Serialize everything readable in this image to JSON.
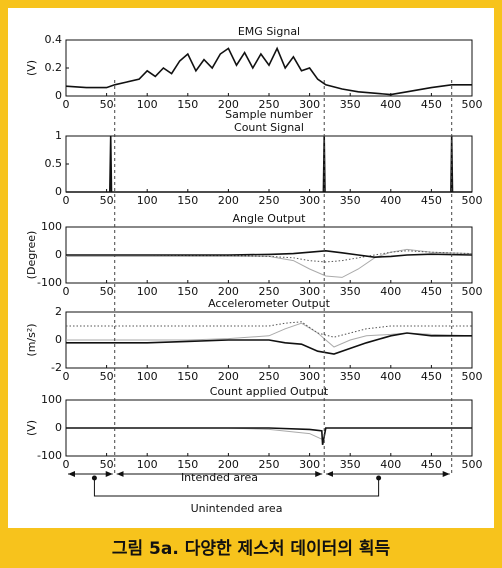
{
  "chart_data": [
    {
      "type": "line",
      "title": "EMG Signal",
      "ylabel": "(V)",
      "xlabel": "Sample number",
      "x": [
        0,
        25,
        50,
        60,
        75,
        90,
        100,
        110,
        120,
        130,
        140,
        150,
        160,
        170,
        180,
        190,
        200,
        210,
        220,
        230,
        240,
        250,
        260,
        270,
        280,
        290,
        300,
        310,
        320,
        340,
        360,
        380,
        400,
        420,
        450,
        475,
        500
      ],
      "series": [
        {
          "color": "#111",
          "style": "solid",
          "values": [
            0.07,
            0.06,
            0.06,
            0.08,
            0.1,
            0.12,
            0.18,
            0.14,
            0.2,
            0.16,
            0.25,
            0.3,
            0.18,
            0.26,
            0.2,
            0.3,
            0.34,
            0.22,
            0.31,
            0.2,
            0.3,
            0.22,
            0.34,
            0.2,
            0.28,
            0.18,
            0.2,
            0.12,
            0.08,
            0.05,
            0.03,
            0.02,
            0.01,
            0.03,
            0.06,
            0.08,
            0.08
          ]
        }
      ],
      "xlim": [
        0,
        500
      ],
      "xticks": [
        0,
        50,
        100,
        150,
        200,
        250,
        300,
        350,
        400,
        450,
        500
      ],
      "ylim": [
        0,
        0.4
      ],
      "yticks": [
        0,
        0.2,
        0.4
      ]
    },
    {
      "type": "line",
      "title": "Count Signal",
      "x": [
        0,
        54,
        55,
        56,
        317,
        318,
        319,
        474,
        475,
        476,
        500
      ],
      "series": [
        {
          "color": "#111",
          "style": "solid",
          "values": [
            0,
            0,
            1,
            0,
            0,
            1,
            0,
            0,
            1,
            0,
            0
          ]
        }
      ],
      "xlim": [
        0,
        500
      ],
      "xticks": [
        0,
        50,
        100,
        150,
        200,
        250,
        300,
        350,
        400,
        450,
        500
      ],
      "ylim": [
        0,
        1
      ],
      "yticks": [
        0,
        0.5,
        1
      ]
    },
    {
      "type": "line",
      "title": "Angle Output",
      "ylabel": "(Degree)",
      "x": [
        0,
        50,
        100,
        150,
        200,
        250,
        280,
        300,
        320,
        340,
        360,
        380,
        400,
        420,
        450,
        500
      ],
      "series": [
        {
          "color": "#aaa",
          "style": "solid",
          "values": [
            -5,
            -5,
            -5,
            -5,
            -5,
            -5,
            -20,
            -50,
            -75,
            -80,
            -50,
            -10,
            10,
            20,
            10,
            5
          ]
        },
        {
          "color": "#555",
          "style": "dotted",
          "values": [
            0,
            0,
            0,
            -2,
            -2,
            -5,
            -10,
            -20,
            -25,
            -20,
            -10,
            0,
            10,
            15,
            10,
            5
          ]
        },
        {
          "color": "#111",
          "style": "solid",
          "values": [
            0,
            0,
            0,
            0,
            0,
            2,
            5,
            10,
            15,
            8,
            0,
            -8,
            -5,
            0,
            3,
            0
          ]
        }
      ],
      "xlim": [
        0,
        500
      ],
      "xticks": [
        0,
        50,
        100,
        150,
        200,
        250,
        300,
        350,
        400,
        450,
        500
      ],
      "ylim": [
        -100,
        100
      ],
      "yticks": [
        -100,
        0,
        100
      ]
    },
    {
      "type": "line",
      "title": "Accelerometer Output",
      "ylabel": "(m/s²)",
      "x": [
        0,
        50,
        100,
        150,
        200,
        250,
        270,
        290,
        310,
        330,
        350,
        370,
        400,
        420,
        450,
        500
      ],
      "series": [
        {
          "color": "#aaa",
          "style": "solid",
          "values": [
            0,
            0,
            0,
            0,
            0.1,
            0.3,
            0.8,
            1.2,
            0.5,
            -0.5,
            0,
            0.3,
            0.4,
            0.5,
            0.4,
            0.3
          ]
        },
        {
          "color": "#555",
          "style": "dotted",
          "values": [
            1,
            1,
            1,
            1,
            1,
            1,
            1.2,
            1.3,
            0.5,
            0.2,
            0.5,
            0.8,
            1,
            1,
            1,
            1
          ]
        },
        {
          "color": "#111",
          "style": "solid",
          "values": [
            -0.2,
            -0.2,
            -0.2,
            -0.1,
            0,
            0,
            -0.2,
            -0.3,
            -0.8,
            -1,
            -0.6,
            -0.2,
            0.3,
            0.5,
            0.3,
            0.3
          ]
        }
      ],
      "xlim": [
        0,
        500
      ],
      "xticks": [
        0,
        50,
        100,
        150,
        200,
        250,
        300,
        350,
        400,
        450,
        500
      ],
      "ylim": [
        -2,
        2
      ],
      "yticks": [
        -2,
        0,
        2
      ]
    },
    {
      "type": "line",
      "title": "Count applied Output",
      "ylabel": "(V)",
      "x": [
        0,
        50,
        100,
        150,
        200,
        250,
        300,
        315,
        316,
        320,
        330,
        500
      ],
      "series": [
        {
          "color": "#aaa",
          "style": "solid",
          "values": [
            0,
            0,
            0,
            0,
            0,
            -5,
            -20,
            -40,
            null,
            null,
            null,
            null
          ]
        },
        {
          "color": "#111",
          "style": "solid",
          "values": [
            0,
            0,
            0,
            0,
            0,
            0,
            -5,
            -10,
            -60,
            0,
            0,
            0
          ]
        }
      ],
      "xlim": [
        0,
        500
      ],
      "xticks": [
        0,
        50,
        100,
        150,
        200,
        250,
        300,
        350,
        400,
        450,
        500
      ],
      "ylim": [
        -100,
        100
      ],
      "yticks": [
        -100,
        0,
        100
      ]
    }
  ],
  "vlines": [
    60,
    318,
    475
  ],
  "annotations": {
    "intended": "Intended area",
    "unintended": "Unintended area",
    "unintended_from": 35,
    "unintended_to": 385
  },
  "caption": "그림 5a. 다양한 제스처 데이터의 획득"
}
